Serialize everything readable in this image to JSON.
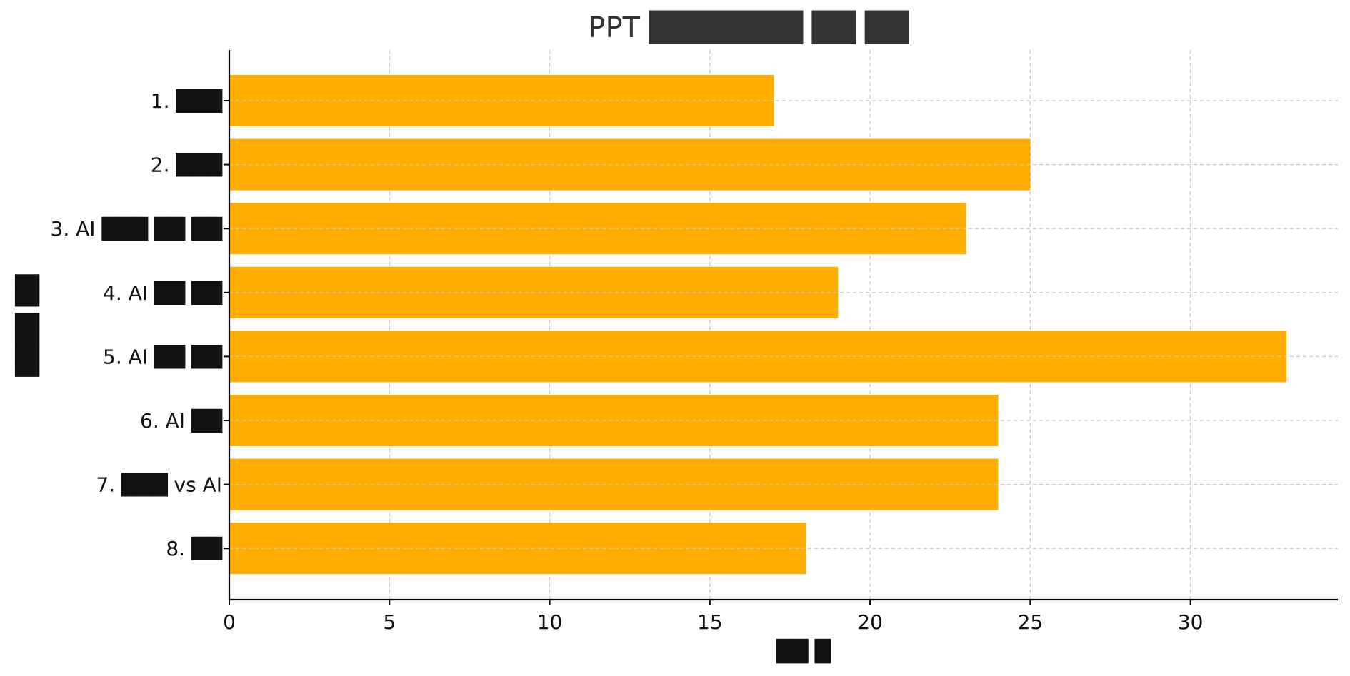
{
  "chart_data": {
    "type": "bar",
    "orientation": "horizontal",
    "title": "PPT ███████ ██ ██",
    "xlabel": "██ █",
    "ylabel": "████ ██",
    "categories": [
      "1. ███",
      "2. ███",
      "3. AI ███ ██ ██",
      "4. AI ██ ██",
      "5. AI ██ ██",
      "6. AI ██",
      "7. ███ vs AI",
      "8. ██"
    ],
    "values": [
      17,
      25,
      23,
      19,
      33,
      24,
      24,
      18
    ],
    "xlim": [
      0,
      34.6
    ],
    "xticks": [
      0,
      5,
      10,
      15,
      20,
      25,
      30
    ],
    "grid": true,
    "bar_color": "#ffae00",
    "grid_color": "#c8c8c8",
    "axis_color": "#000000"
  }
}
